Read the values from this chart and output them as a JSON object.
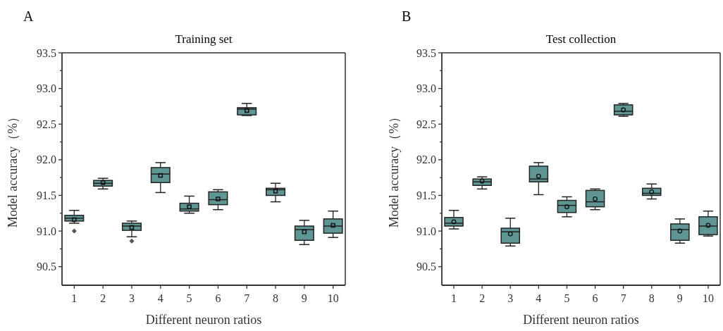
{
  "chart_data": [
    {
      "type": "box",
      "title": "Training set",
      "xlabel": "Different neuron ratios",
      "ylabel": "Model accuracy（%）",
      "annotations": [
        "A"
      ],
      "categories": [
        "1",
        "2",
        "3",
        "4",
        "5",
        "6",
        "7",
        "8",
        "9",
        "10"
      ],
      "color": "#5f9593",
      "marker": "square",
      "ylim": [
        90.24,
        93.5
      ],
      "yticks": [
        {
          "value": 90.5,
          "label": "90.5"
        },
        {
          "value": 90.75,
          "label": null
        },
        {
          "value": 91,
          "label": "91.0"
        },
        {
          "value": 91.25,
          "label": null
        },
        {
          "value": 91.5,
          "label": "91.5"
        },
        {
          "value": 91.75,
          "label": null
        },
        {
          "value": 92,
          "label": "92.0"
        },
        {
          "value": 92.25,
          "label": null
        },
        {
          "value": 92.5,
          "label": "92.5"
        },
        {
          "value": 92.75,
          "label": null
        },
        {
          "value": 93,
          "label": "93.0"
        },
        {
          "value": 93.25,
          "label": null
        },
        {
          "value": 93.5,
          "label": "93.5"
        }
      ],
      "boxes": [
        {
          "low": 91.11,
          "q1": 91.14,
          "median": 91.18,
          "q3": 91.22,
          "high": 91.29,
          "mean": 91.16,
          "outliers": [
            91.0
          ]
        },
        {
          "low": 91.59,
          "q1": 91.63,
          "median": 91.67,
          "q3": 91.71,
          "high": 91.74,
          "mean": 91.68
        },
        {
          "low": 90.92,
          "q1": 91.01,
          "median": 91.07,
          "q3": 91.11,
          "high": 91.14,
          "mean": 91.05,
          "outliers": [
            90.86
          ]
        },
        {
          "low": 91.54,
          "q1": 91.68,
          "median": 91.8,
          "q3": 91.89,
          "high": 91.96,
          "mean": 91.78
        },
        {
          "low": 91.25,
          "q1": 91.28,
          "median": 91.31,
          "q3": 91.39,
          "high": 91.49,
          "mean": 91.34
        },
        {
          "low": 91.3,
          "q1": 91.37,
          "median": 91.44,
          "q3": 91.55,
          "high": 91.58,
          "mean": 91.45
        },
        {
          "low": 92.62,
          "q1": 92.63,
          "median": 92.71,
          "q3": 92.73,
          "high": 92.79,
          "mean": 92.69
        },
        {
          "low": 91.41,
          "q1": 91.5,
          "median": 91.58,
          "q3": 91.6,
          "high": 91.67,
          "mean": 91.56
        },
        {
          "low": 90.81,
          "q1": 90.87,
          "median": 91.02,
          "q3": 91.07,
          "high": 91.15,
          "mean": 90.99
        },
        {
          "low": 90.91,
          "q1": 90.97,
          "median": 91.07,
          "q3": 91.17,
          "high": 91.28,
          "mean": 91.08
        }
      ]
    },
    {
      "type": "box",
      "title": "Test collection",
      "xlabel": "Different neuron ratios",
      "ylabel": "Model accuracy（%）",
      "annotations": [
        "B"
      ],
      "categories": [
        "1",
        "2",
        "3",
        "4",
        "5",
        "6",
        "7",
        "8",
        "9",
        "10"
      ],
      "color": "#5f9593",
      "marker": "circle",
      "ylim": [
        90.24,
        93.5
      ],
      "yticks": [
        {
          "value": 90.5,
          "label": "90.5"
        },
        {
          "value": 90.75,
          "label": null
        },
        {
          "value": 91,
          "label": "91.0"
        },
        {
          "value": 91.25,
          "label": null
        },
        {
          "value": 91.5,
          "label": "91.5"
        },
        {
          "value": 91.75,
          "label": null
        },
        {
          "value": 92,
          "label": "92.0"
        },
        {
          "value": 92.25,
          "label": null
        },
        {
          "value": 92.5,
          "label": "92.5"
        },
        {
          "value": 92.75,
          "label": null
        },
        {
          "value": 93,
          "label": "93.0"
        },
        {
          "value": 93.25,
          "label": null
        },
        {
          "value": 93.5,
          "label": "93.5"
        }
      ],
      "boxes": [
        {
          "low": 91.03,
          "q1": 91.07,
          "median": 91.11,
          "q3": 91.19,
          "high": 91.29,
          "mean": 91.13
        },
        {
          "low": 91.59,
          "q1": 91.64,
          "median": 91.69,
          "q3": 91.73,
          "high": 91.76,
          "mean": 91.7
        },
        {
          "low": 90.79,
          "q1": 90.83,
          "median": 90.99,
          "q3": 91.04,
          "high": 91.18,
          "mean": 90.96
        },
        {
          "low": 91.51,
          "q1": 91.69,
          "median": 91.73,
          "q3": 91.91,
          "high": 91.96,
          "mean": 91.77
        },
        {
          "low": 91.2,
          "q1": 91.26,
          "median": 91.36,
          "q3": 91.43,
          "high": 91.48,
          "mean": 91.34
        },
        {
          "low": 91.3,
          "q1": 91.34,
          "median": 91.41,
          "q3": 91.57,
          "high": 91.59,
          "mean": 91.45
        },
        {
          "low": 92.61,
          "q1": 92.63,
          "median": 92.68,
          "q3": 92.77,
          "high": 92.79,
          "mean": 92.7
        },
        {
          "low": 91.45,
          "q1": 91.5,
          "median": 91.53,
          "q3": 91.6,
          "high": 91.66,
          "mean": 91.55
        },
        {
          "low": 90.83,
          "q1": 90.87,
          "median": 91.02,
          "q3": 91.1,
          "high": 91.17,
          "mean": 91.0
        },
        {
          "low": 90.93,
          "q1": 90.95,
          "median": 91.07,
          "q3": 91.2,
          "high": 91.28,
          "mean": 91.08
        }
      ]
    }
  ]
}
